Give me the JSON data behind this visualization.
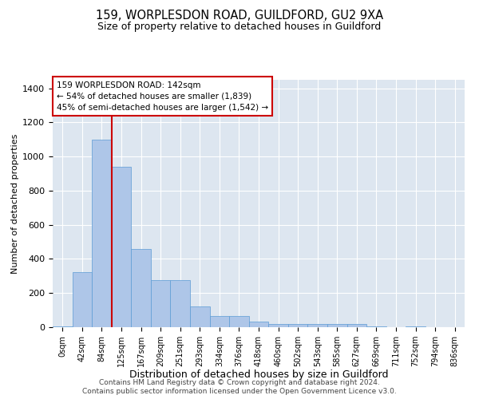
{
  "title1": "159, WORPLESDON ROAD, GUILDFORD, GU2 9XA",
  "title2": "Size of property relative to detached houses in Guildford",
  "xlabel": "Distribution of detached houses by size in Guildford",
  "ylabel": "Number of detached properties",
  "annotation_line1": "159 WORPLESDON ROAD: 142sqm",
  "annotation_line2": "← 54% of detached houses are smaller (1,839)",
  "annotation_line3": "45% of semi-detached houses are larger (1,542) →",
  "footer1": "Contains HM Land Registry data © Crown copyright and database right 2024.",
  "footer2": "Contains public sector information licensed under the Open Government Licence v3.0.",
  "bin_labels": [
    "0sqm",
    "42sqm",
    "84sqm",
    "125sqm",
    "167sqm",
    "209sqm",
    "251sqm",
    "293sqm",
    "334sqm",
    "376sqm",
    "418sqm",
    "460sqm",
    "502sqm",
    "543sqm",
    "585sqm",
    "627sqm",
    "669sqm",
    "711sqm",
    "752sqm",
    "794sqm",
    "836sqm"
  ],
  "bar_values": [
    5,
    325,
    1100,
    940,
    460,
    275,
    275,
    120,
    65,
    65,
    35,
    20,
    20,
    20,
    20,
    20,
    5,
    0,
    5,
    0,
    0
  ],
  "bar_color": "#aec6e8",
  "bar_edge_color": "#5b9bd5",
  "vline_color": "#cc0000",
  "annotation_box_color": "#cc0000",
  "plot_bg_color": "#dde6f0",
  "ylim": [
    0,
    1450
  ],
  "yticks": [
    0,
    200,
    400,
    600,
    800,
    1000,
    1200,
    1400
  ]
}
